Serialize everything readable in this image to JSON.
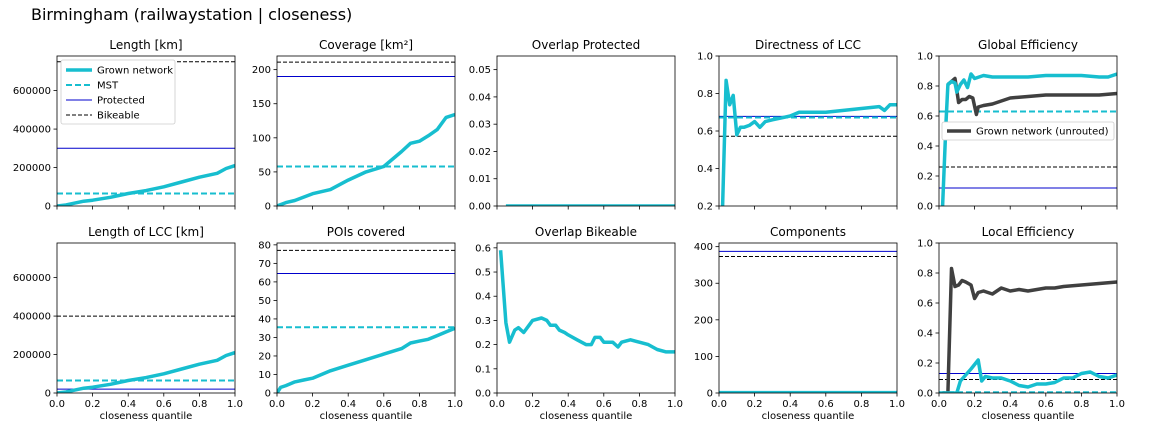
{
  "figure": {
    "title": "Birmingham (railwaystation | closeness)"
  },
  "colors": {
    "grown": "#17becf",
    "mst": "#17becf",
    "protected": "#0000cc",
    "bikeable": "#000000",
    "unrouted": "#404040"
  },
  "legend_main": {
    "entries": [
      {
        "label": "Grown network",
        "style": "grown"
      },
      {
        "label": "MST",
        "style": "mst"
      },
      {
        "label": "Protected",
        "style": "protected"
      },
      {
        "label": "Bikeable",
        "style": "bikeable"
      }
    ]
  },
  "legend_unrouted": {
    "label": "Grown network (unrouted)"
  },
  "chart_data": [
    {
      "title": "Length [km]",
      "type": "line",
      "ylim": [
        0,
        780000
      ],
      "yticks": [
        0,
        200000,
        400000,
        600000
      ],
      "ytick_labels": [
        "0",
        "200000",
        "400000",
        "600000"
      ],
      "xticks": [],
      "xtick_labels": [],
      "xlabel": "",
      "hlines": {
        "mst": 65000,
        "protected": 300000,
        "bikeable": 750000
      },
      "grown": {
        "x": [
          0,
          0.05,
          0.1,
          0.15,
          0.2,
          0.3,
          0.4,
          0.5,
          0.6,
          0.7,
          0.8,
          0.9,
          0.95,
          1.0
        ],
        "y": [
          0,
          5000,
          15000,
          25000,
          30000,
          45000,
          65000,
          80000,
          100000,
          125000,
          150000,
          170000,
          195000,
          210000
        ]
      }
    },
    {
      "title": "Coverage [km²]",
      "type": "line",
      "ylim": [
        0,
        220
      ],
      "yticks": [
        0,
        50,
        100,
        150,
        200
      ],
      "ytick_labels": [
        "0",
        "50",
        "100",
        "150",
        "200"
      ],
      "xticks": [],
      "xtick_labels": [],
      "xlabel": "",
      "hlines": {
        "mst": 58,
        "protected": 190,
        "bikeable": 211
      },
      "grown": {
        "x": [
          0,
          0.05,
          0.1,
          0.15,
          0.2,
          0.3,
          0.4,
          0.5,
          0.6,
          0.7,
          0.75,
          0.8,
          0.85,
          0.9,
          0.95,
          1.0
        ],
        "y": [
          0,
          5,
          8,
          13,
          18,
          24,
          38,
          50,
          58,
          80,
          92,
          95,
          103,
          112,
          130,
          134
        ]
      }
    },
    {
      "title": "Overlap Protected",
      "type": "line",
      "ylim": [
        0,
        0.055
      ],
      "yticks": [
        0,
        0.01,
        0.02,
        0.03,
        0.04,
        0.05
      ],
      "ytick_labels": [
        "0.00",
        "0.01",
        "0.02",
        "0.03",
        "0.04",
        "0.05"
      ],
      "xticks": [],
      "xtick_labels": [],
      "xlabel": "",
      "hlines": {},
      "grown": {
        "x": [
          0.05,
          1.0
        ],
        "y": [
          0,
          0
        ]
      }
    },
    {
      "title": "Directness of LCC",
      "type": "line",
      "ylim": [
        0.2,
        1.0
      ],
      "yticks": [
        0.2,
        0.4,
        0.6,
        0.8,
        1.0
      ],
      "ytick_labels": [
        "0.2",
        "0.4",
        "0.6",
        "0.8",
        "1.0"
      ],
      "xticks": [],
      "xtick_labels": [],
      "xlabel": "",
      "hlines": {
        "mst": 0.672,
        "protected": 0.678,
        "bikeable": 0.572
      },
      "grown": {
        "x": [
          0.02,
          0.04,
          0.06,
          0.08,
          0.1,
          0.12,
          0.14,
          0.17,
          0.2,
          0.23,
          0.26,
          0.3,
          0.35,
          0.4,
          0.45,
          0.5,
          0.6,
          0.7,
          0.8,
          0.9,
          0.93,
          0.96,
          1.0
        ],
        "y": [
          0.2,
          0.87,
          0.74,
          0.79,
          0.58,
          0.62,
          0.62,
          0.63,
          0.65,
          0.62,
          0.65,
          0.66,
          0.67,
          0.68,
          0.7,
          0.7,
          0.7,
          0.71,
          0.72,
          0.73,
          0.71,
          0.74,
          0.74
        ]
      }
    },
    {
      "title": "Global Efficiency",
      "type": "line",
      "ylim": [
        0,
        1.0
      ],
      "yticks": [
        0,
        0.2,
        0.4,
        0.6,
        0.8,
        1.0
      ],
      "ytick_labels": [
        "0.0",
        "0.2",
        "0.4",
        "0.6",
        "0.8",
        "1.0"
      ],
      "xticks": [],
      "xtick_labels": [],
      "xlabel": "",
      "hlines": {
        "mst": 0.63,
        "protected": 0.12,
        "bikeable": 0.26
      },
      "grown": {
        "x": [
          0.02,
          0.04,
          0.05,
          0.07,
          0.09,
          0.1,
          0.12,
          0.14,
          0.16,
          0.18,
          0.2,
          0.25,
          0.3,
          0.4,
          0.5,
          0.6,
          0.7,
          0.8,
          0.9,
          0.95,
          1.0
        ],
        "y": [
          0.0,
          0.57,
          0.81,
          0.83,
          0.82,
          0.76,
          0.81,
          0.84,
          0.79,
          0.88,
          0.85,
          0.87,
          0.86,
          0.86,
          0.86,
          0.87,
          0.87,
          0.87,
          0.86,
          0.86,
          0.88
        ]
      },
      "unrouted": {
        "x": [
          0.05,
          0.07,
          0.09,
          0.11,
          0.13,
          0.15,
          0.17,
          0.19,
          0.21,
          0.22,
          0.25,
          0.3,
          0.35,
          0.4,
          0.5,
          0.6,
          0.7,
          0.8,
          0.9,
          1.0
        ],
        "y": [
          0.81,
          0.83,
          0.85,
          0.69,
          0.71,
          0.71,
          0.73,
          0.72,
          0.61,
          0.66,
          0.67,
          0.68,
          0.7,
          0.72,
          0.73,
          0.74,
          0.74,
          0.74,
          0.74,
          0.75
        ]
      }
    },
    {
      "title": "Length of LCC [km]",
      "type": "line",
      "ylim": [
        0,
        780000
      ],
      "yticks": [
        0,
        200000,
        400000,
        600000
      ],
      "ytick_labels": [
        "0",
        "200000",
        "400000",
        "600000"
      ],
      "xticks": [
        0,
        0.2,
        0.4,
        0.6,
        0.8,
        1.0
      ],
      "xtick_labels": [
        "0.0",
        "0.2",
        "0.4",
        "0.6",
        "0.8",
        "1.0"
      ],
      "xlabel": "closeness quantile",
      "hlines": {
        "mst": 65000,
        "protected": 20000,
        "bikeable": 400000
      },
      "grown": {
        "x": [
          0,
          0.05,
          0.1,
          0.15,
          0.2,
          0.3,
          0.4,
          0.5,
          0.6,
          0.7,
          0.8,
          0.9,
          0.95,
          1.0
        ],
        "y": [
          0,
          5000,
          15000,
          25000,
          30000,
          45000,
          65000,
          80000,
          100000,
          125000,
          150000,
          170000,
          195000,
          210000
        ]
      }
    },
    {
      "title": "POIs covered",
      "type": "line",
      "ylim": [
        0,
        81
      ],
      "yticks": [
        0,
        10,
        20,
        30,
        40,
        50,
        60,
        70,
        80
      ],
      "ytick_labels": [
        "0",
        "10",
        "20",
        "30",
        "40",
        "50",
        "60",
        "70",
        "80"
      ],
      "xticks": [
        0,
        0.2,
        0.4,
        0.6,
        0.8,
        1.0
      ],
      "xtick_labels": [
        "0.0",
        "0.2",
        "0.4",
        "0.6",
        "0.8",
        "1.0"
      ],
      "xlabel": "closeness quantile",
      "hlines": {
        "mst": 35.5,
        "protected": 64.5,
        "bikeable": 77
      },
      "grown": {
        "x": [
          0,
          0.02,
          0.05,
          0.1,
          0.15,
          0.2,
          0.3,
          0.4,
          0.5,
          0.6,
          0.7,
          0.75,
          0.8,
          0.85,
          0.9,
          0.95,
          1.0
        ],
        "y": [
          0,
          3,
          4,
          6,
          7,
          8,
          12,
          15,
          18,
          21,
          24,
          27,
          28,
          29,
          31,
          33,
          35
        ]
      }
    },
    {
      "title": "Overlap Bikeable",
      "type": "line",
      "ylim": [
        0,
        0.62
      ],
      "yticks": [
        0,
        0.1,
        0.2,
        0.3,
        0.4,
        0.5,
        0.6
      ],
      "ytick_labels": [
        "0.0",
        "0.1",
        "0.2",
        "0.3",
        "0.4",
        "0.5",
        "0.6"
      ],
      "xticks": [
        0,
        0.2,
        0.4,
        0.6,
        0.8,
        1.0
      ],
      "xtick_labels": [
        "0.0",
        "0.2",
        "0.4",
        "0.6",
        "0.8",
        "1.0"
      ],
      "xlabel": "closeness quantile",
      "hlines": {},
      "grown": {
        "x": [
          0.02,
          0.05,
          0.07,
          0.1,
          0.12,
          0.15,
          0.18,
          0.2,
          0.25,
          0.28,
          0.3,
          0.33,
          0.35,
          0.38,
          0.4,
          0.45,
          0.5,
          0.53,
          0.55,
          0.58,
          0.6,
          0.65,
          0.68,
          0.7,
          0.75,
          0.8,
          0.85,
          0.9,
          0.95,
          1.0
        ],
        "y": [
          0.59,
          0.29,
          0.21,
          0.26,
          0.27,
          0.25,
          0.28,
          0.3,
          0.31,
          0.3,
          0.28,
          0.28,
          0.26,
          0.25,
          0.24,
          0.22,
          0.2,
          0.2,
          0.23,
          0.23,
          0.21,
          0.21,
          0.19,
          0.21,
          0.22,
          0.21,
          0.2,
          0.18,
          0.17,
          0.17
        ]
      }
    },
    {
      "title": "Components",
      "type": "line",
      "ylim": [
        0,
        410
      ],
      "yticks": [
        0,
        100,
        200,
        300,
        400
      ],
      "ytick_labels": [
        "0",
        "100",
        "200",
        "300",
        "400"
      ],
      "xticks": [
        0,
        0.2,
        0.4,
        0.6,
        0.8,
        1.0
      ],
      "xtick_labels": [
        "0.0",
        "0.2",
        "0.4",
        "0.6",
        "0.8",
        "1.0"
      ],
      "xlabel": "closeness quantile",
      "hlines": {
        "mst": 1,
        "protected": 387,
        "bikeable": 373
      },
      "grown": {
        "x": [
          0,
          1.0
        ],
        "y": [
          1,
          1
        ]
      }
    },
    {
      "title": "Local Efficiency",
      "type": "line",
      "ylim": [
        0,
        1.0
      ],
      "yticks": [
        0,
        0.2,
        0.4,
        0.6,
        0.8,
        1.0
      ],
      "ytick_labels": [
        "0.0",
        "0.2",
        "0.4",
        "0.6",
        "0.8",
        "1.0"
      ],
      "xticks": [
        0,
        0.2,
        0.4,
        0.6,
        0.8,
        1.0
      ],
      "xtick_labels": [
        "0.0",
        "0.2",
        "0.4",
        "0.6",
        "0.8",
        "1.0"
      ],
      "xlabel": "closeness quantile",
      "hlines": {
        "mst": 0.005,
        "protected": 0.13,
        "bikeable": 0.09
      },
      "grown": {
        "x": [
          0.02,
          0.1,
          0.12,
          0.15,
          0.18,
          0.22,
          0.24,
          0.26,
          0.3,
          0.35,
          0.4,
          0.45,
          0.5,
          0.55,
          0.6,
          0.65,
          0.7,
          0.75,
          0.8,
          0.85,
          0.9,
          0.95,
          1.0
        ],
        "y": [
          0,
          0,
          0.08,
          0.12,
          0.16,
          0.22,
          0.08,
          0.11,
          0.1,
          0.1,
          0.08,
          0.05,
          0.04,
          0.06,
          0.06,
          0.07,
          0.1,
          0.1,
          0.13,
          0.14,
          0.11,
          0.1,
          0.12
        ]
      },
      "unrouted": {
        "x": [
          0.02,
          0.05,
          0.07,
          0.09,
          0.11,
          0.13,
          0.15,
          0.18,
          0.2,
          0.22,
          0.25,
          0.3,
          0.35,
          0.4,
          0.45,
          0.5,
          0.55,
          0.6,
          0.65,
          0.7,
          0.8,
          0.9,
          1.0
        ],
        "y": [
          0,
          0,
          0.83,
          0.71,
          0.72,
          0.75,
          0.74,
          0.72,
          0.63,
          0.67,
          0.68,
          0.66,
          0.7,
          0.68,
          0.69,
          0.68,
          0.69,
          0.7,
          0.7,
          0.71,
          0.72,
          0.73,
          0.74
        ]
      }
    }
  ]
}
